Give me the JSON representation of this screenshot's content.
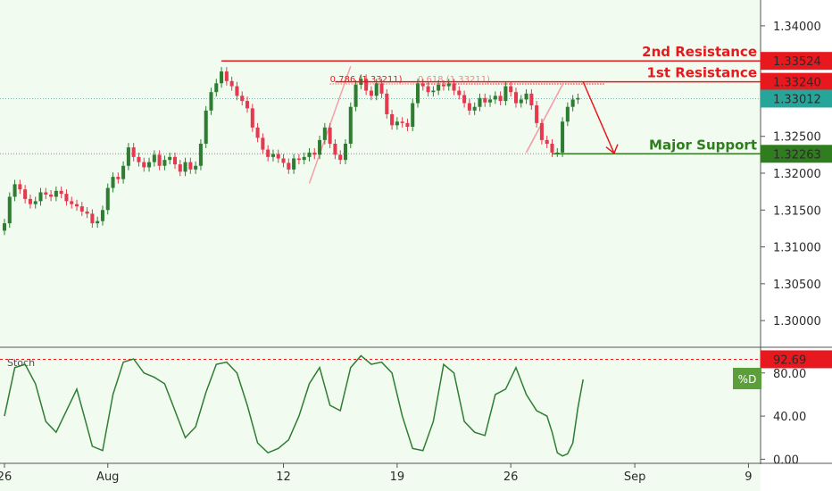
{
  "chart_data": [
    {
      "type": "candlestick",
      "ylim": [
        1.2965,
        1.3435
      ],
      "yticks": [
        "1.34000",
        "1.33500",
        "1.32500",
        "1.32000",
        "1.31500",
        "1.31000",
        "1.30500",
        "1.30000"
      ],
      "ytick_values": [
        1.34,
        1.335,
        1.325,
        1.32,
        1.315,
        1.31,
        1.305,
        1.3
      ],
      "x_range": [
        0,
        146
      ],
      "x_ticks": [
        {
          "label": "26",
          "x": 0
        },
        {
          "label": "Aug",
          "x": 20
        },
        {
          "label": "12",
          "x": 54
        },
        {
          "label": "19",
          "x": 76
        },
        {
          "label": "26",
          "x": 98
        },
        {
          "label": "Sep",
          "x": 122
        },
        {
          "label": "9",
          "x": 144
        }
      ],
      "current_price": {
        "label": "1.33012",
        "value": 1.33012,
        "color": "#26a69a"
      },
      "levels": [
        {
          "name": "2nd Resistance",
          "label": "1.33524",
          "value": 1.33524,
          "x_start": 42,
          "color": "#e8191e"
        },
        {
          "name": "1st Resistance",
          "label": "1.33240",
          "value": 1.3324,
          "x_start": 64,
          "color": "#e8191e"
        },
        {
          "name": "Major Support",
          "label": "1.32263",
          "value": 1.32263,
          "x_start": 106,
          "color": "#2f7d1e"
        }
      ],
      "annotations": [
        {
          "text": "0.786 (1.33211)",
          "value": 1.33211,
          "x_start": 63,
          "x_end": 111
        },
        {
          "text": "0.618 (1.33211)",
          "value": 1.33211,
          "x_start": 80,
          "x_end": 111
        }
      ],
      "projection": [
        {
          "x": 112,
          "y": 1.3324
        },
        {
          "x": 118,
          "y": 1.3227
        }
      ],
      "candle_colors": {
        "up": "#2e7d32",
        "down": "#e53950"
      },
      "closes": [
        1.3132,
        1.3168,
        1.3185,
        1.3178,
        1.3165,
        1.3158,
        1.3162,
        1.3174,
        1.3171,
        1.3168,
        1.3176,
        1.3172,
        1.3162,
        1.3158,
        1.3155,
        1.3148,
        1.3145,
        1.3132,
        1.3135,
        1.315,
        1.318,
        1.3195,
        1.3192,
        1.321,
        1.3235,
        1.3222,
        1.3215,
        1.3208,
        1.3215,
        1.3225,
        1.321,
        1.3218,
        1.3222,
        1.3212,
        1.3202,
        1.3215,
        1.3205,
        1.321,
        1.324,
        1.3285,
        1.331,
        1.3322,
        1.3338,
        1.3325,
        1.3318,
        1.3305,
        1.3298,
        1.3288,
        1.3262,
        1.3248,
        1.3232,
        1.3222,
        1.3226,
        1.322,
        1.3214,
        1.3205,
        1.322,
        1.3218,
        1.3222,
        1.3228,
        1.3225,
        1.3245,
        1.3262,
        1.324,
        1.3225,
        1.3218,
        1.324,
        1.329,
        1.332,
        1.3328,
        1.3312,
        1.3305,
        1.3322,
        1.3308,
        1.328,
        1.3265,
        1.327,
        1.3268,
        1.3263,
        1.3295,
        1.3322,
        1.3318,
        1.331,
        1.3312,
        1.332,
        1.3318,
        1.3322,
        1.3312,
        1.3306,
        1.3295,
        1.3285,
        1.329,
        1.3302,
        1.3296,
        1.33,
        1.3305,
        1.3298,
        1.3318,
        1.331,
        1.3295,
        1.33,
        1.3308,
        1.3292,
        1.3268,
        1.3245,
        1.324,
        1.3228,
        1.3228,
        1.327,
        1.329,
        1.33,
        1.3302
      ]
    },
    {
      "type": "line",
      "title": "Stoch",
      "ylim": [
        -3,
        103
      ],
      "yticks": [
        "0.00",
        "40.00",
        "80.00"
      ],
      "ytick_values": [
        0,
        40,
        80
      ],
      "reference": {
        "label": "92.69",
        "value": 92.69,
        "color": "#e8191e"
      },
      "series": [
        {
          "name": "%D",
          "color": "#2e7d32",
          "x": [
            0,
            2,
            4,
            6,
            8,
            10,
            12,
            14,
            16,
            17,
            19,
            21,
            23,
            25,
            27,
            29,
            31,
            33,
            35,
            37,
            39,
            41,
            43,
            45,
            47,
            49,
            51,
            53,
            55,
            57,
            59,
            61,
            63,
            65,
            67,
            69,
            71,
            73,
            75,
            77,
            79,
            81,
            83,
            85,
            87,
            89,
            91,
            93,
            95,
            97,
            99,
            101,
            103,
            105,
            106,
            107,
            108,
            109,
            110,
            111,
            112
          ],
          "values": [
            40,
            85,
            88,
            70,
            35,
            25,
            45,
            65,
            30,
            12,
            8,
            60,
            90,
            93,
            80,
            76,
            70,
            45,
            20,
            30,
            62,
            88,
            90,
            80,
            50,
            15,
            6,
            10,
            18,
            40,
            70,
            85,
            50,
            45,
            85,
            96,
            88,
            90,
            80,
            40,
            10,
            8,
            35,
            88,
            80,
            35,
            25,
            22,
            60,
            65,
            85,
            60,
            45,
            40,
            25,
            6,
            3,
            5,
            15,
            48,
            74
          ]
        }
      ],
      "legend": "%D"
    }
  ]
}
